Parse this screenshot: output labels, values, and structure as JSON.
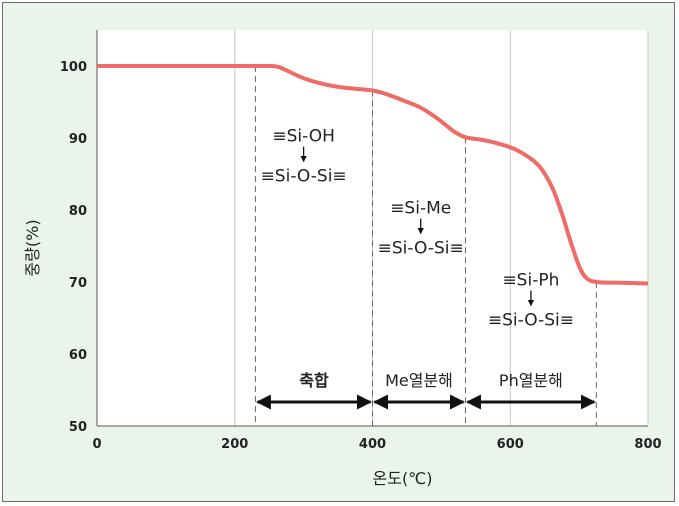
{
  "colors": {
    "background": "#eaf4ea",
    "plot_background": "#ffffff",
    "curve": "#ee6b66",
    "grid": "#c8c8c8",
    "marker_line": "#666666",
    "arrow": "#111111"
  },
  "chart_data": {
    "type": "line",
    "xlabel": "온도(℃)",
    "ylabel": "중량(%)",
    "xlim": [
      0,
      800
    ],
    "ylim": [
      50,
      105
    ],
    "x_ticks": [
      "0",
      "200",
      "400",
      "600",
      "800"
    ],
    "y_ticks": [
      "50",
      "60",
      "70",
      "80",
      "90",
      "100"
    ],
    "grid": "vertical",
    "series": [
      {
        "points": [
          [
            0,
            100
          ],
          [
            230,
            100
          ],
          [
            250,
            100
          ],
          [
            262,
            99.9
          ],
          [
            275,
            99.4
          ],
          [
            295,
            98.5
          ],
          [
            320,
            97.7
          ],
          [
            350,
            97.1
          ],
          [
            380,
            96.8
          ],
          [
            400,
            96.6
          ],
          [
            420,
            96.1
          ],
          [
            445,
            95.2
          ],
          [
            470,
            94.2
          ],
          [
            490,
            93.0
          ],
          [
            505,
            91.9
          ],
          [
            520,
            90.8
          ],
          [
            535,
            90.1
          ],
          [
            555,
            89.8
          ],
          [
            580,
            89.3
          ],
          [
            610,
            88.3
          ],
          [
            640,
            86.3
          ],
          [
            660,
            83.3
          ],
          [
            675,
            79.5
          ],
          [
            688,
            75.5
          ],
          [
            700,
            72.2
          ],
          [
            710,
            70.6
          ],
          [
            725,
            70.0
          ],
          [
            760,
            69.9
          ],
          [
            800,
            69.8
          ]
        ]
      }
    ],
    "markers": [
      230,
      400,
      535,
      725
    ],
    "regions": [
      {
        "label": "축합",
        "from": 230,
        "to": 400,
        "bold": true
      },
      {
        "label": "Me열분해",
        "from": 400,
        "to": 535,
        "bold": false
      },
      {
        "label": "Ph열분해",
        "from": 535,
        "to": 725,
        "bold": false
      }
    ],
    "annotations": [
      {
        "top": "≡Si-OH",
        "bottom": "≡Si-O-Si≡",
        "x": 300,
        "y": 89.5
      },
      {
        "top": "≡Si-Me",
        "bottom": "≡Si-O-Si≡",
        "x": 470,
        "y": 79.5
      },
      {
        "top": "≡Si-Ph",
        "bottom": "≡Si-O-Si≡",
        "x": 630,
        "y": 69.5
      }
    ]
  }
}
